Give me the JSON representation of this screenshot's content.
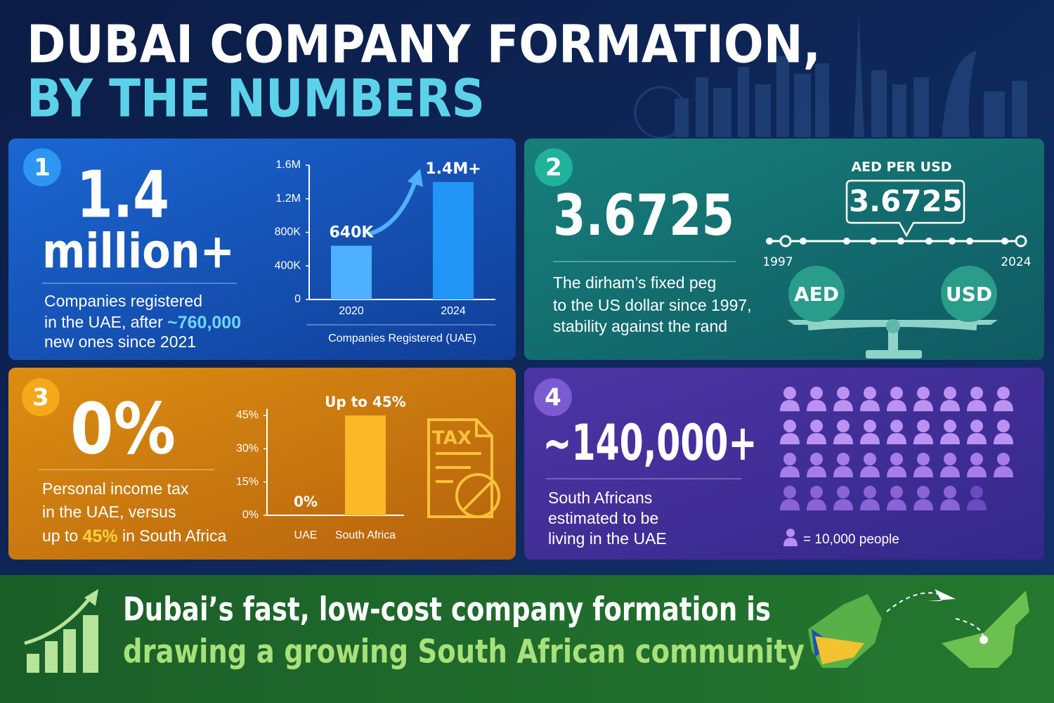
{
  "header": {
    "title_line1": "DUBAI COMPANY FORMATION,",
    "title_line2": "BY THE NUMBERS"
  },
  "panels": [
    {
      "number": "1",
      "headline_line1": "1.4",
      "headline_line2": "million+",
      "text": {
        "line1": "Companies registered",
        "line2_start": "in the UAE, after ",
        "line2_highlight": "~760,000",
        "line3": "new ones since 2021"
      }
    },
    {
      "number": "2",
      "headline": "3.6725",
      "text": {
        "line1": "The dirham’s fixed peg",
        "line2": "to the US dollar since 1997,",
        "line3": "stability against the rand"
      },
      "rate_label": "AED PER USD",
      "rate_value": "3.6725",
      "timeline_start": "1997",
      "timeline_end": "2024",
      "left_pan": "AED",
      "right_pan": "USD"
    },
    {
      "number": "3",
      "headline": "0%",
      "text": {
        "line1": "Personal income tax",
        "line2": "in the UAE, versus",
        "line3_start": "up to ",
        "line3_highlight": "45%",
        "line3_end": " in South Africa"
      },
      "icon_label": "TAX"
    },
    {
      "number": "4",
      "headline": "~140,000+",
      "text": {
        "line1": "South Africans",
        "line2": "estimated to be",
        "line3": "living in the UAE"
      },
      "legend": "= 10,000 people"
    }
  ],
  "footer": {
    "line1": "Dubai’s fast, low-cost company formation is",
    "line2": "drawing a growing South African community"
  },
  "chart_data": [
    {
      "type": "bar",
      "xlabel": "Companies Registered (UAE)",
      "categories": [
        "2020",
        "2024"
      ],
      "values": [
        640000,
        1400000
      ],
      "value_labels": [
        "640K",
        "1.4M+"
      ],
      "colors": [
        "#4fb0ff",
        "#2196f7"
      ],
      "ylim": [
        0,
        1600000
      ],
      "yticks": [
        0,
        {
          "value": 400000,
          "label": "400K"
        },
        {
          "value": 800000,
          "label": "800K"
        },
        {
          "value": 1200000,
          "label": "1.2M"
        },
        {
          "value": 1600000,
          "label": "1.6M"
        }
      ]
    },
    {
      "type": "bar",
      "categories": [
        "UAE",
        "South Africa"
      ],
      "values": [
        0,
        45
      ],
      "value_labels": [
        "0%",
        "Up to 45%"
      ],
      "colors": [
        "#fbb827",
        "#fbb827"
      ],
      "ylim": [
        0,
        48
      ],
      "yticks": [
        {
          "value": 0,
          "label": "0%"
        },
        {
          "value": 15,
          "label": "15%"
        },
        {
          "value": 30,
          "label": "30%"
        },
        {
          "value": 45,
          "label": "45%"
        }
      ]
    }
  ]
}
